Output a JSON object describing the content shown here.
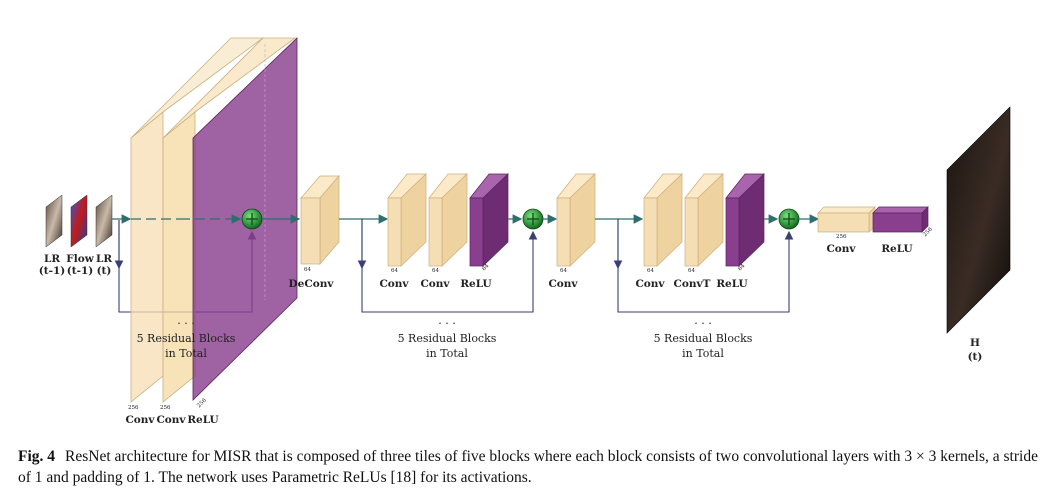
{
  "inputs": [
    {
      "line1": "LR",
      "line2": "(t-1)"
    },
    {
      "line1": "Flow",
      "line2": "(t-1)"
    },
    {
      "line1": "LR",
      "line2": "(t)"
    }
  ],
  "output": {
    "line1": "H",
    "line2": "(t)"
  },
  "layer_labels": {
    "conv": "Conv",
    "relu": "ReLU",
    "deconv": "DeConv",
    "convt": "ConvT"
  },
  "dims": {
    "d256": "256",
    "d64": "64"
  },
  "ellipsis": ". . .",
  "residual_note": {
    "line1": "5 Residual Blocks",
    "line2": "in Total"
  },
  "colors": {
    "conv": "#f5deb3",
    "relu": "#8a3f8e",
    "add": "#1e8a2e",
    "connection": "#3b3f75",
    "flow": "#2f6e6e"
  },
  "caption": {
    "label": "Fig. 4",
    "text": "ResNet architecture for MISR that is composed of three tiles of five blocks where each block consists of two convolutional layers with 3 × 3 kernels, a stride of 1 and padding of 1. The network uses Parametric ReLUs [18] for its activations."
  }
}
